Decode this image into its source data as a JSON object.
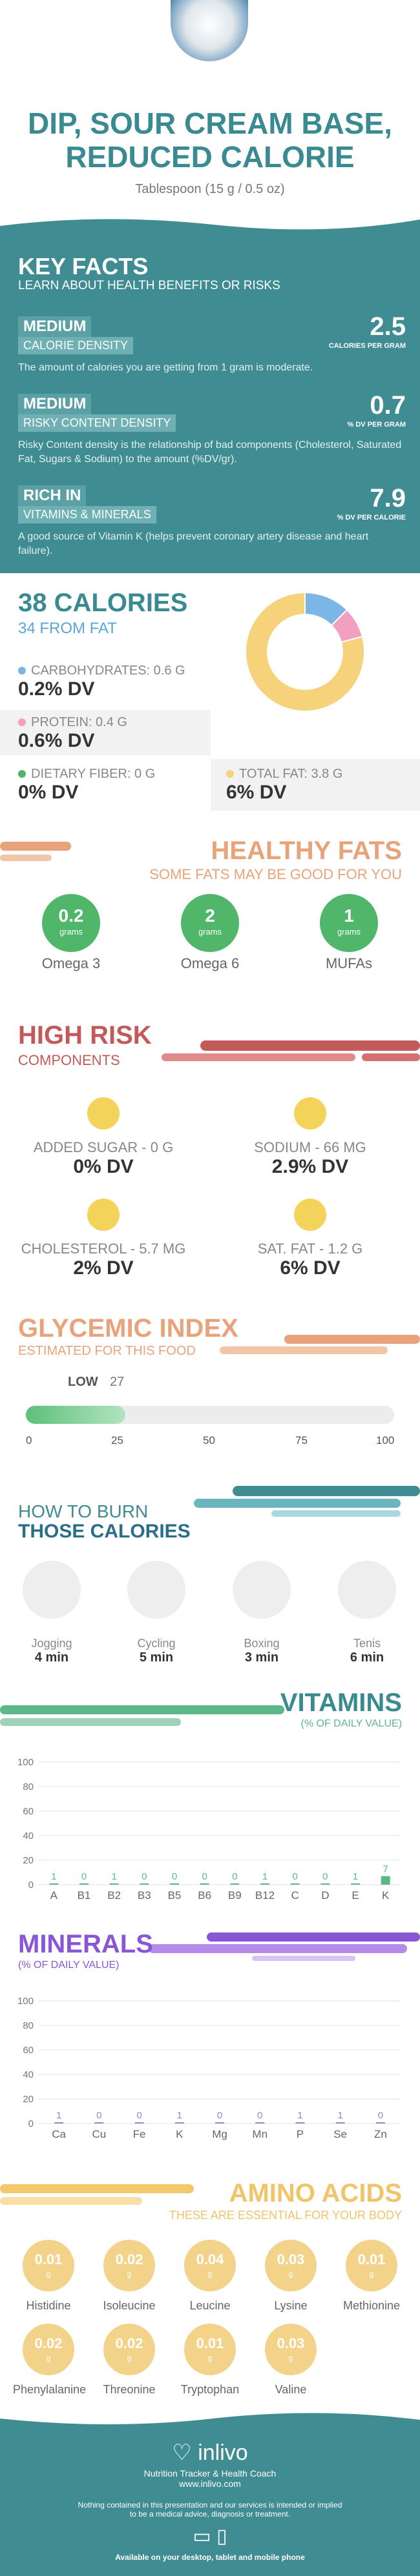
{
  "header": {
    "title_line1": "DIP, SOUR CREAM BASE,",
    "title_line2": "REDUCED CALORIE",
    "serving": "Tablespoon (15 g / 0.5 oz)"
  },
  "key_facts": {
    "title": "KEY FACTS",
    "subtitle": "LEARN ABOUT HEALTH BENEFITS OR RISKS",
    "items": [
      {
        "level": "MEDIUM",
        "name": "CALORIE DENSITY",
        "value": "2.5",
        "unit": "CALORIES PER GRAM",
        "desc": "The amount of calories you are getting from 1 gram is moderate."
      },
      {
        "level": "MEDIUM",
        "name": "RISKY CONTENT DENSITY",
        "value": "0.7",
        "unit": "% DV PER GRAM",
        "desc": "Risky Content density is the relationship of bad components (Cholesterol, Saturated Fat, Sugars & Sodium) to the amount (%DV/gr)."
      },
      {
        "level": "RICH IN",
        "name": "VITAMINS & MINERALS",
        "value": "7.9",
        "unit": "% DV PER CALORIE",
        "desc": "A good source of Vitamin K (helps prevent coronary artery disease and heart failure)."
      }
    ]
  },
  "calories": {
    "title": "38 CALORIES",
    "from_fat": "34 FROM FAT",
    "carbs_label": "CARBOHYDRATES: 0.6 g",
    "carbs_dv": "0.2% DV",
    "protein_label": "PROTEIN: 0.4 g",
    "protein_dv": "0.6% DV",
    "fiber_label": "DIETARY FIBER: 0 g",
    "fiber_dv": "0% DV",
    "fat_label": "TOTAL FAT: 3.8 g",
    "fat_dv": "6% DV"
  },
  "chart_data": [
    {
      "type": "pie",
      "title": "",
      "categories": [
        "Carbohydrates",
        "Protein",
        "Total Fat"
      ],
      "values": [
        0.6,
        0.4,
        3.8
      ],
      "colors": [
        "#7cb6e6",
        "#f2a0c0",
        "#f6d27a"
      ]
    },
    {
      "type": "bar",
      "title": "Glycemic Index",
      "categories": [
        "LOW"
      ],
      "values": [
        27
      ],
      "xlim": [
        0,
        100
      ],
      "ticks": [
        "0",
        "25",
        "50",
        "75",
        "100"
      ]
    },
    {
      "type": "bar",
      "title": "VITAMINS",
      "categories": [
        "A",
        "B1",
        "B2",
        "B3",
        "B5",
        "B6",
        "B9",
        "B12",
        "C",
        "D",
        "E",
        "K"
      ],
      "values": [
        1,
        0,
        1,
        0,
        0,
        0,
        0,
        1,
        0,
        0,
        1,
        7
      ],
      "ylim": [
        0,
        100
      ],
      "ticks": [
        "0",
        "20",
        "40",
        "60",
        "80",
        "100"
      ]
    },
    {
      "type": "bar",
      "title": "MINERALS",
      "categories": [
        "Ca",
        "Cu",
        "Fe",
        "K",
        "Mg",
        "Mn",
        "P",
        "Se",
        "Zn"
      ],
      "values": [
        1,
        0,
        0,
        1,
        0,
        0,
        1,
        1,
        0
      ],
      "ylim": [
        0,
        100
      ],
      "ticks": [
        "0",
        "20",
        "40",
        "60",
        "80",
        "100"
      ]
    }
  ],
  "healthy_fats": {
    "title": "HEALTHY FATS",
    "subtitle": "SOME FATS MAY BE GOOD FOR YOU",
    "unit": "grams",
    "items": [
      {
        "v": "0.2",
        "n": "Omega 3"
      },
      {
        "v": "2",
        "n": "Omega 6"
      },
      {
        "v": "1",
        "n": "MUFAs"
      }
    ]
  },
  "high_risk": {
    "title": "HIGH RISK",
    "subtitle": "COMPONENTS",
    "items": [
      {
        "l": "ADDED SUGAR - 0 g",
        "d": "0% DV"
      },
      {
        "l": "SODIUM - 66 mg",
        "d": "2.9% DV"
      },
      {
        "l": "CHOLESTEROL - 5.7 mg",
        "d": "2% DV"
      },
      {
        "l": "SAT. FAT - 1.2 g",
        "d": "6% DV"
      }
    ]
  },
  "glycemic": {
    "title": "GLYCEMIC INDEX",
    "subtitle": "ESTIMATED FOR THIS FOOD",
    "level": "LOW",
    "value": "27",
    "ticks": [
      "0",
      "25",
      "50",
      "75",
      "100"
    ]
  },
  "burn": {
    "title1": "HOW TO BURN",
    "title2": "THOSE CALORIES",
    "items": [
      {
        "n": "Jogging",
        "m": "4 min"
      },
      {
        "n": "Cycling",
        "m": "5 min"
      },
      {
        "n": "Boxing",
        "m": "3 min"
      },
      {
        "n": "Tenis",
        "m": "6 min"
      }
    ]
  },
  "vitamins": {
    "title": "VITAMINS",
    "subtitle": "(% OF DAILY VALUE)",
    "labels": [
      "1",
      "0",
      "1",
      "0",
      "0",
      "0",
      "0",
      "1",
      "0",
      "0",
      "1",
      "7"
    ]
  },
  "minerals": {
    "title": "MINERALS",
    "subtitle": "(% OF DAILY VALUE)",
    "labels": [
      "1",
      "0",
      "0",
      "1",
      "0",
      "0",
      "1",
      "1",
      "0"
    ]
  },
  "amino": {
    "title": "AMINO ACIDS",
    "subtitle": "THESE ARE ESSENTIAL FOR YOUR BODY",
    "unit": "g",
    "items": [
      {
        "v": "0.01",
        "n": "Histidine"
      },
      {
        "v": "0.02",
        "n": "Isoleucine"
      },
      {
        "v": "0.04",
        "n": "Leucine"
      },
      {
        "v": "0.03",
        "n": "Lysine"
      },
      {
        "v": "0.01",
        "n": "Methionine"
      },
      {
        "v": "0.02",
        "n": "Phenylalanine"
      },
      {
        "v": "0.02",
        "n": "Threonine"
      },
      {
        "v": "0.01",
        "n": "Tryptophan"
      },
      {
        "v": "0.03",
        "n": "Valine"
      }
    ]
  },
  "footer": {
    "brand": "inlivo",
    "tag": "Nutrition Tracker & Health Coach",
    "url": "www.inlivo.com",
    "disclaimer1": "Nothing contained in this presentation and our services is intended or implied",
    "disclaimer2": "to be a medical advice, diagnosis or treatment.",
    "available": "Available on your desktop, tablet and mobile phone"
  }
}
